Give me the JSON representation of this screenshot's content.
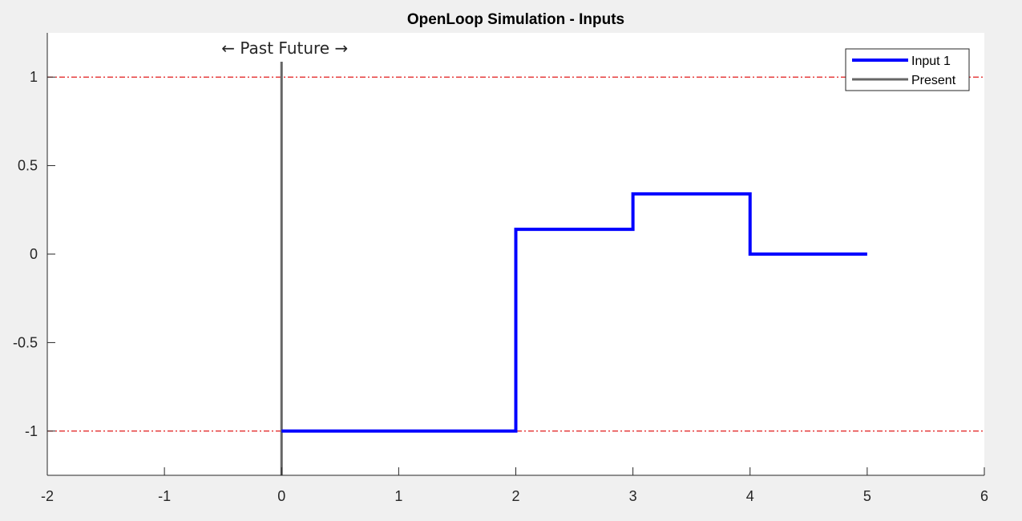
{
  "chart_data": {
    "type": "line",
    "title": "OpenLoop Simulation - Inputs",
    "xlabel": "",
    "ylabel": "",
    "xlim": [
      -2,
      6
    ],
    "ylim": [
      -1.25,
      1.25
    ],
    "x_ticks": [
      -2,
      -1,
      0,
      1,
      2,
      3,
      4,
      5,
      6
    ],
    "x_tick_labels": [
      "-2",
      "-1",
      "0",
      "1",
      "2",
      "3",
      "4",
      "5",
      "6"
    ],
    "y_ticks": [
      -1,
      -0.5,
      0,
      0.5,
      1
    ],
    "y_tick_labels": [
      "-1",
      "-0.5",
      "0",
      "0.5",
      "1"
    ],
    "grid": false,
    "legend_position": "top-right",
    "series": [
      {
        "name": "Input 1",
        "style": "step",
        "color": "#0000ff",
        "x": [
          0,
          1,
          2,
          3,
          4,
          5
        ],
        "y": [
          -1,
          -1,
          0.14,
          0.34,
          0,
          0
        ]
      },
      {
        "name": "Present",
        "style": "vertical-line",
        "color": "#666666",
        "x": 0
      }
    ],
    "reference_lines": [
      {
        "y": 1,
        "color": "#dd0000",
        "style": "dash-dot"
      },
      {
        "y": -1,
        "color": "#dd0000",
        "style": "dash-dot"
      }
    ],
    "annotations": [
      {
        "text": "← Past Future →",
        "x": 0,
        "y": 1.16
      }
    ]
  }
}
